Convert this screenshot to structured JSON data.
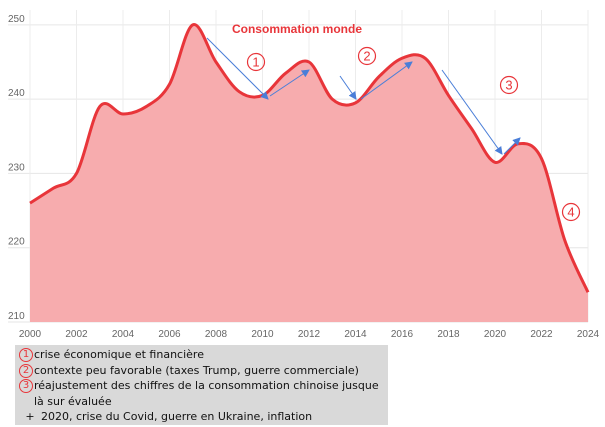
{
  "chart_data": {
    "type": "area",
    "title": "Consommation monde",
    "x": [
      2000,
      2001,
      2002,
      2003,
      2004,
      2005,
      2006,
      2007,
      2008,
      2009,
      2010,
      2011,
      2012,
      2013,
      2014,
      2015,
      2016,
      2017,
      2018,
      2019,
      2020,
      2021,
      2022,
      2023,
      2024
    ],
    "y": [
      226,
      228,
      230,
      239,
      238,
      239,
      242,
      250,
      245,
      241,
      240.5,
      243.5,
      245,
      240,
      239.5,
      243,
      245.5,
      245.5,
      240.5,
      236,
      231.5,
      234,
      232,
      221,
      214
    ],
    "xticks": [
      "2000",
      "2002",
      "2004",
      "2006",
      "2008",
      "2010",
      "2012",
      "2014",
      "2016",
      "2018",
      "2020",
      "2022",
      "2024"
    ],
    "yticks": [
      "210",
      "220",
      "230",
      "240",
      "250"
    ],
    "xlim": [
      2000,
      2024
    ],
    "ylim": [
      210,
      252
    ],
    "grid": true,
    "colors": {
      "line": "#e8353a",
      "fill": "#f7acae",
      "title": "#e8353a",
      "arrow": "#4a7ed8",
      "annotation": "#e8353a"
    },
    "annotations": [
      "1",
      "2",
      "3",
      "4"
    ]
  },
  "legend": {
    "items": [
      {
        "num": "1",
        "text": "crise économique et financière"
      },
      {
        "num": "2",
        "text": "contexte peu favorable (taxes Trump, guerre commerciale)"
      },
      {
        "num": "3",
        "text": "réajustement des chiffres de la consommation chinoise jusque là sur évaluée"
      }
    ],
    "bullet": "+",
    "extra": "2020, crise du Covid, guerre en Ukraine, inflation"
  }
}
